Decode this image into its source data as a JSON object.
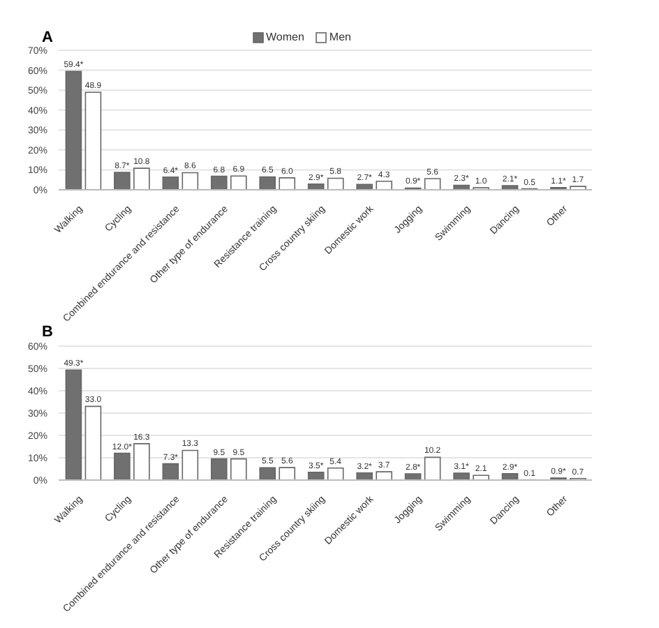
{
  "chart_data": [
    {
      "type": "bar",
      "title": "A",
      "categories": [
        "Walking",
        "Cycling",
        "Combined endurance and resistance",
        "Other type of endurance",
        "Resistance training",
        "Cross country skiing",
        "Domestic work",
        "Jogging",
        "Swimming",
        "Dancing",
        "Other"
      ],
      "series": [
        {
          "name": "Women",
          "color": "#707070",
          "values": [
            59.4,
            8.7,
            6.4,
            6.8,
            6.5,
            2.9,
            2.7,
            0.9,
            2.3,
            2.1,
            1.1
          ],
          "value_labels": [
            "59.4*",
            "8.7*",
            "6.4*",
            "6.8",
            "6.5",
            "2.9*",
            "2.7*",
            "0.9*",
            "2.3*",
            "2.1*",
            "1.1*"
          ]
        },
        {
          "name": "Men",
          "color": "#ffffff",
          "values": [
            48.9,
            10.8,
            8.6,
            6.9,
            6.0,
            5.8,
            4.3,
            5.6,
            1.0,
            0.5,
            1.7
          ],
          "value_labels": [
            "48.9",
            "10.8",
            "8.6",
            "6.9",
            "6.0",
            "5.8",
            "4.3",
            "5.6",
            "1.0",
            "0.5",
            "1.7"
          ]
        }
      ],
      "ylim": [
        0,
        70
      ],
      "yticks": [
        {
          "value": 0,
          "label": "0%"
        },
        {
          "value": 10,
          "label": "10%"
        },
        {
          "value": 20,
          "label": "20%"
        },
        {
          "value": 30,
          "label": "30%"
        },
        {
          "value": 40,
          "label": "40%"
        },
        {
          "value": 50,
          "label": "50%"
        },
        {
          "value": 60,
          "label": "60%"
        },
        {
          "value": 70,
          "label": "70%"
        }
      ],
      "grid": "y",
      "legend": "top"
    },
    {
      "type": "bar",
      "title": "B",
      "categories": [
        "Walking",
        "Cycling",
        "Combined endurance and resistance",
        "Other type of endurance",
        "Resistance training",
        "Cross country skiing",
        "Domestic work",
        "Jogging",
        "Swimming",
        "Dancing",
        "Other"
      ],
      "series": [
        {
          "color": "#707070",
          "values": [
            49.3,
            12.0,
            7.3,
            9.5,
            5.5,
            3.5,
            3.2,
            2.8,
            3.1,
            2.9,
            0.9
          ],
          "value_labels": [
            "49.3*",
            "12.0*",
            "7.3*",
            "9.5",
            "5.5",
            "3.5*",
            "3.2*",
            "2.8*",
            "3.1*",
            "2.9*",
            "0.9*"
          ]
        },
        {
          "color": "#ffffff",
          "values": [
            33.0,
            16.3,
            13.3,
            9.5,
            5.6,
            5.4,
            3.7,
            10.2,
            2.1,
            0.1,
            0.7
          ],
          "value_labels": [
            "33.0",
            "16.3",
            "13.3",
            "9.5",
            "5.6",
            "5.4",
            "3.7",
            "10.2",
            "2.1",
            "0.1",
            "0.7"
          ]
        }
      ],
      "ylim": [
        0,
        60
      ],
      "yticks": [
        {
          "value": 0,
          "label": "0%"
        },
        {
          "value": 10,
          "label": "10%"
        },
        {
          "value": 20,
          "label": "20%"
        },
        {
          "value": 30,
          "label": "30%"
        },
        {
          "value": 40,
          "label": "40%"
        },
        {
          "value": 50,
          "label": "50%"
        },
        {
          "value": 60,
          "label": "60%"
        }
      ],
      "grid": "y"
    }
  ]
}
